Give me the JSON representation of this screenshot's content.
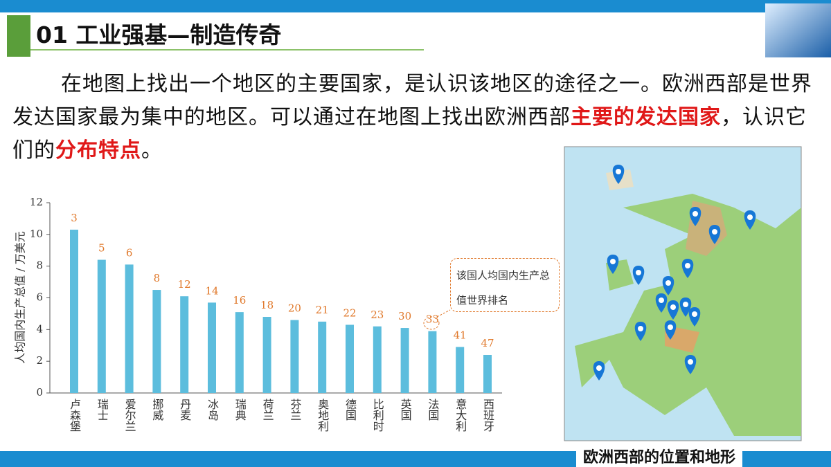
{
  "header": {
    "title": "01 工业强基—制造传奇"
  },
  "paragraph": [
    {
      "text": "在地图上找出一个地区的主要国家，是认识该地区的途径之一。欧洲西部是世界发达国家最为集中的地区。可以通过在地图上找出欧洲西部",
      "emphasis": false
    },
    {
      "text": "主要的发达国家",
      "emphasis": true
    },
    {
      "text": "，认识它们的",
      "emphasis": false
    },
    {
      "text": "分布特点",
      "emphasis": true
    },
    {
      "text": "。",
      "emphasis": false
    }
  ],
  "chart_data": {
    "type": "bar",
    "y_label": "人均国内生产总值 / 万美元",
    "categories": [
      "卢森堡",
      "瑞士",
      "爱尔兰",
      "挪威",
      "丹麦",
      "冰岛",
      "瑞典",
      "荷兰",
      "芬兰",
      "奥地利",
      "德国",
      "比利时",
      "英国",
      "法国",
      "意大利",
      "西班牙"
    ],
    "values": [
      10.3,
      8.4,
      8.1,
      6.5,
      6.1,
      5.7,
      5.1,
      4.8,
      4.6,
      4.5,
      4.3,
      4.2,
      4.1,
      3.9,
      2.9,
      2.4
    ],
    "rank_labels": [
      3,
      5,
      6,
      8,
      12,
      14,
      16,
      18,
      20,
      21,
      22,
      23,
      30,
      33,
      41,
      47
    ],
    "color": "#5cbddd",
    "rank_color": "#e0782a",
    "ylim": [
      0,
      12
    ],
    "yticks": [
      0,
      2,
      4,
      6,
      8,
      10,
      12
    ],
    "annotation": "该国人均国内生产总值世界排名"
  },
  "map": {
    "caption": "欧洲西部的位置和地形"
  }
}
